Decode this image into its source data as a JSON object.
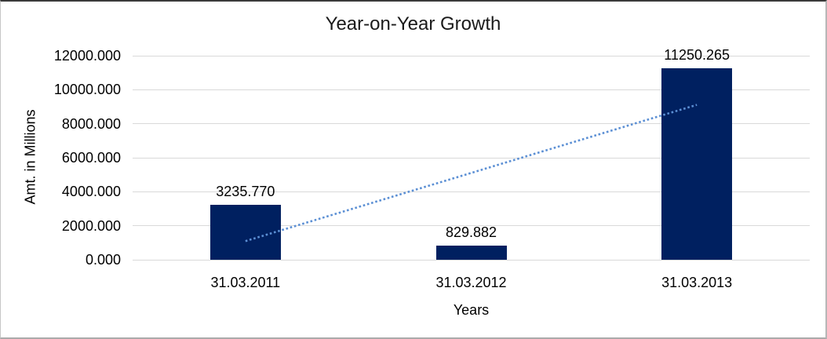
{
  "chart_data": {
    "type": "bar",
    "title": "Year-on-Year Growth",
    "xlabel": "Years",
    "ylabel": "Amt. in Millions",
    "categories": [
      "31.03.2011",
      "31.03.2012",
      "31.03.2013"
    ],
    "values": [
      3235.77,
      829.882,
      11250.265
    ],
    "data_labels": [
      "3235.770",
      "829.882",
      "11250.265"
    ],
    "ylim": [
      0,
      12000
    ],
    "ytick_step": 2000,
    "ytick_labels": [
      "0.000",
      "2000.000",
      "4000.000",
      "6000.000",
      "8000.000",
      "10000.000",
      "12000.000"
    ],
    "grid": true,
    "legend": "none",
    "trendline": {
      "type": "linear",
      "style": "dotted"
    },
    "colors": {
      "bar": "#002060",
      "trendline": "#5B8FD4",
      "gridline": "#D9D9D9",
      "text": "#000000"
    }
  }
}
